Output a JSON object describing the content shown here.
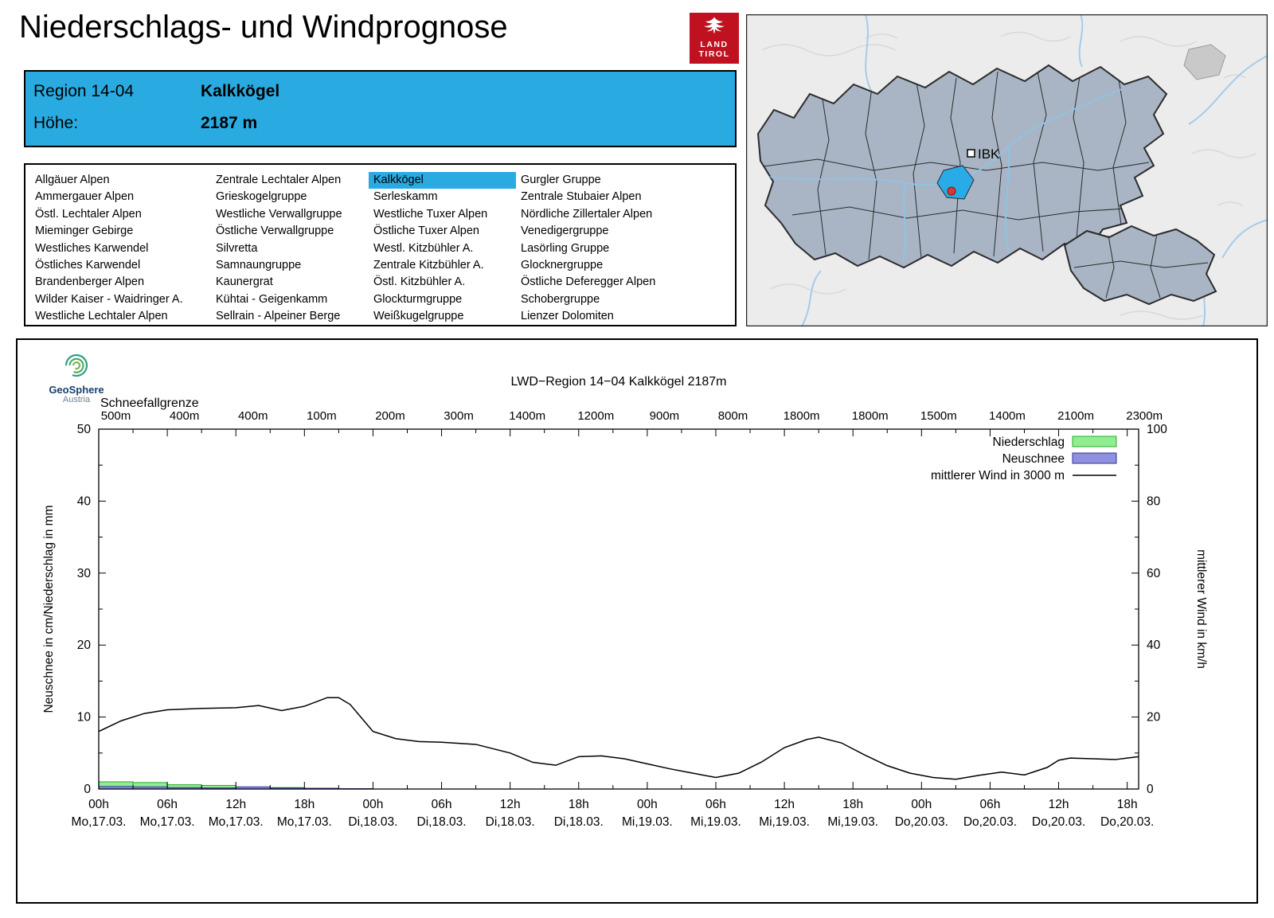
{
  "page": {
    "title": "Niederschlags- und Windprognose"
  },
  "land_tirol_logo": {
    "line1": "LAND",
    "line2": "TIROL"
  },
  "map": {
    "ibk_label": "IBK"
  },
  "header": {
    "region_label": "Region 14-04",
    "region_name": "Kalkkögel",
    "altitude_label": "Höhe:",
    "altitude_value": "2187 m",
    "background_color": "#29ABE2"
  },
  "regions": {
    "selected": "Kalkkögel",
    "selected_color": "#29ABE2",
    "columns": [
      [
        "Allgäuer Alpen",
        "Ammergauer Alpen",
        "Östl. Lechtaler Alpen",
        "Mieminger Gebirge",
        "Westliches Karwendel",
        "Östliches Karwendel",
        "Brandenberger Alpen",
        "Wilder Kaiser - Waidringer A.",
        "Westliche Lechtaler Alpen"
      ],
      [
        "Zentrale Lechtaler Alpen",
        "Grieskogelgruppe",
        "Westliche Verwallgruppe",
        "Östliche Verwallgruppe",
        "Silvretta",
        "Samnaungruppe",
        "Kaunergrat",
        "Kühtai - Geigenkamm",
        "Sellrain - Alpeiner Berge"
      ],
      [
        "Kalkkögel",
        "Serleskamm",
        "Westliche Tuxer Alpen",
        "Östliche Tuxer Alpen",
        "Westl. Kitzbühler A.",
        "Zentrale Kitzbühler A.",
        "Östl. Kitzbühler A.",
        "Glockturmgruppe",
        "Weißkugelgruppe"
      ],
      [
        "Gurgler Gruppe",
        "Zentrale Stubaier Alpen",
        "Nördliche Zillertaler Alpen",
        "Venedigergruppe",
        "Lasörling Gruppe",
        "Glocknergruppe",
        "Östliche Deferegger Alpen",
        "Schobergruppe",
        "Lienzer Dolomiten"
      ]
    ]
  },
  "geosphere_logo": {
    "name": "GeoSphere",
    "sub": "Austria"
  },
  "chart_data": {
    "type": "line",
    "title": "LWD−Region 14−04 Kalkkögel 2187m",
    "snowline_label": "Schneefallgrenze",
    "snowline_values": [
      "500m",
      "400m",
      "400m",
      "100m",
      "200m",
      "300m",
      "1400m",
      "1200m",
      "900m",
      "800m",
      "1800m",
      "1800m",
      "1500m",
      "1400m",
      "2100m",
      "2300m"
    ],
    "ylabel_left": "Neuschnee in cm/Niederschlag in mm",
    "ylabel_right": "mittlerer Wind in km/h",
    "ylim_left": [
      0,
      50
    ],
    "ylim_right": [
      0,
      100
    ],
    "x_hours_max": 91,
    "x_ticks": [
      {
        "hour": 0,
        "time": "00h",
        "date": "Mo,17.03."
      },
      {
        "hour": 6,
        "time": "06h",
        "date": "Mo,17.03."
      },
      {
        "hour": 12,
        "time": "12h",
        "date": "Mo,17.03."
      },
      {
        "hour": 18,
        "time": "18h",
        "date": "Mo,17.03."
      },
      {
        "hour": 24,
        "time": "00h",
        "date": "Di,18.03."
      },
      {
        "hour": 30,
        "time": "06h",
        "date": "Di,18.03."
      },
      {
        "hour": 36,
        "time": "12h",
        "date": "Di,18.03."
      },
      {
        "hour": 42,
        "time": "18h",
        "date": "Di,18.03."
      },
      {
        "hour": 48,
        "time": "00h",
        "date": "Mi,19.03."
      },
      {
        "hour": 54,
        "time": "06h",
        "date": "Mi,19.03."
      },
      {
        "hour": 60,
        "time": "12h",
        "date": "Mi,19.03."
      },
      {
        "hour": 66,
        "time": "18h",
        "date": "Mi,19.03."
      },
      {
        "hour": 72,
        "time": "00h",
        "date": "Do,20.03."
      },
      {
        "hour": 78,
        "time": "06h",
        "date": "Do,20.03."
      },
      {
        "hour": 84,
        "time": "12h",
        "date": "Do,20.03."
      },
      {
        "hour": 90,
        "time": "18h",
        "date": "Do,20.03."
      }
    ],
    "legend": [
      {
        "label": "Niederschlag",
        "type": "box",
        "fill": "#90EE90",
        "stroke": "#2EA82E"
      },
      {
        "label": "Neuschnee",
        "type": "box",
        "fill": "#9090E0",
        "stroke": "#3030A0"
      },
      {
        "label": "mittlerer Wind in 3000 m",
        "type": "line",
        "stroke": "#000000"
      }
    ],
    "series": [
      {
        "name": "mittlerer Wind in 3000 m",
        "type": "line",
        "axis": "right",
        "unit": "km/h",
        "points": [
          [
            0,
            16
          ],
          [
            2,
            19
          ],
          [
            4,
            21
          ],
          [
            6,
            22
          ],
          [
            9,
            22.4
          ],
          [
            12,
            22.6
          ],
          [
            14,
            23.2
          ],
          [
            16,
            21.8
          ],
          [
            18,
            23
          ],
          [
            20,
            25.4
          ],
          [
            21,
            25.4
          ],
          [
            22,
            23.5
          ],
          [
            24,
            16
          ],
          [
            26,
            14
          ],
          [
            28,
            13.2
          ],
          [
            30,
            13
          ],
          [
            33,
            12.4
          ],
          [
            36,
            10
          ],
          [
            38,
            7.4
          ],
          [
            40,
            6.6
          ],
          [
            42,
            9
          ],
          [
            44,
            9.2
          ],
          [
            46,
            8.4
          ],
          [
            48,
            7
          ],
          [
            50,
            5.6
          ],
          [
            52,
            4.4
          ],
          [
            54,
            3.2
          ],
          [
            56,
            4.4
          ],
          [
            58,
            7.5
          ],
          [
            60,
            11.5
          ],
          [
            62,
            13.8
          ],
          [
            63,
            14.4
          ],
          [
            65,
            12.8
          ],
          [
            67,
            9.5
          ],
          [
            69,
            6.5
          ],
          [
            71,
            4.4
          ],
          [
            73,
            3.2
          ],
          [
            75,
            2.7
          ],
          [
            77,
            3.8
          ],
          [
            79,
            4.7
          ],
          [
            81,
            3.9
          ],
          [
            83,
            6
          ],
          [
            84,
            8
          ],
          [
            85,
            8.6
          ],
          [
            87,
            8.4
          ],
          [
            89,
            8.2
          ],
          [
            90,
            8.6
          ],
          [
            91,
            9
          ]
        ]
      }
    ],
    "bars": [
      {
        "name": "Niederschlag",
        "unit": "mm",
        "interval_hours": 3,
        "start_hour": 0,
        "values": [
          1.0,
          0.9,
          0.6,
          0.5,
          0.25,
          0.2,
          0.1,
          0.05
        ]
      },
      {
        "name": "Neuschnee",
        "unit": "cm",
        "interval_hours": 3,
        "start_hour": 0,
        "values": [
          0.35,
          0.3,
          0.2,
          0.15,
          0.3,
          0.15,
          0.1,
          0.05
        ]
      }
    ]
  }
}
